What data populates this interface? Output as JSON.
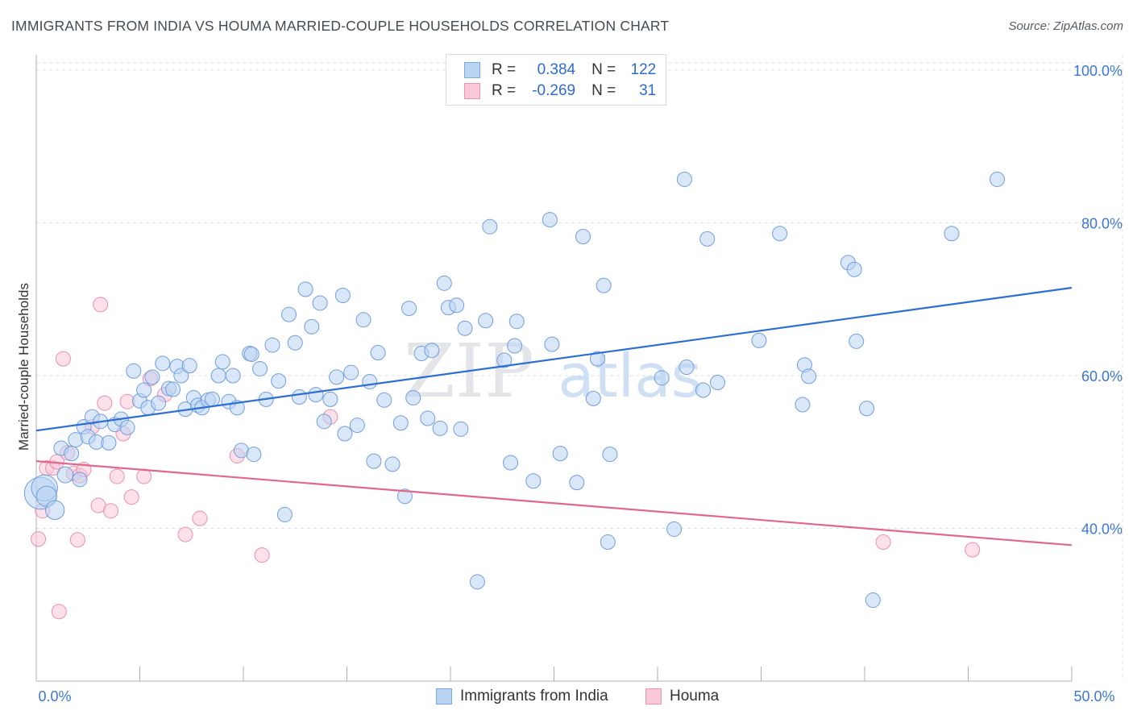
{
  "title": "IMMIGRANTS FROM INDIA VS HOUMA MARRIED-COUPLE HOUSEHOLDS CORRELATION CHART",
  "source": "Source: ZipAtlas.com",
  "watermark": {
    "part1": "ZIP",
    "part2": "atlas"
  },
  "legend": {
    "series1": {
      "r_label": "R =",
      "r_value": "0.384",
      "n_label": "N =",
      "n_value": "122"
    },
    "series2": {
      "r_label": "R =",
      "r_value": "-0.269",
      "n_label": "N =",
      "n_value": "31"
    }
  },
  "bottom_legend": {
    "series1": "Immigrants from India",
    "series2": "Houma"
  },
  "colors": {
    "blue_fill": "#b9d3f3",
    "blue_edge": "#6f9ee0",
    "blue_line": "#2d6fd1",
    "pink_fill": "#f9c9d8",
    "pink_edge": "#ec8fae",
    "pink_line": "#e0688f",
    "tick_text": "#3a78d4"
  },
  "chart_data": {
    "type": "scatter",
    "title": "IMMIGRANTS FROM INDIA VS HOUMA MARRIED-COUPLE HOUSEHOLDS CORRELATION CHART",
    "xlabel": "",
    "ylabel": "Married-couple Households",
    "xlim": [
      0,
      50
    ],
    "ylim": [
      20,
      102
    ],
    "x_tick_labels": [
      "0.0%",
      "50.0%"
    ],
    "y_ticks": [
      40,
      60,
      80,
      100
    ],
    "y_tick_labels": [
      "40.0%",
      "60.0%",
      "80.0%",
      "100.0%"
    ],
    "grid": true,
    "series": [
      {
        "name": "Immigrants from India",
        "r": 0.384,
        "n": 122,
        "trend": {
          "x": [
            0,
            50
          ],
          "y": [
            52.8,
            71.5
          ]
        },
        "points": [
          [
            0.2,
            44.6,
            2.2
          ],
          [
            0.4,
            45.3,
            1.8
          ],
          [
            0.5,
            44.2,
            1.4
          ],
          [
            0.9,
            42.4,
            1.3
          ],
          [
            1.2,
            50.5,
            1.0
          ],
          [
            1.4,
            47.0,
            1.1
          ],
          [
            1.7,
            49.8,
            1.0
          ],
          [
            1.9,
            51.6,
            1.0
          ],
          [
            2.1,
            46.4,
            1.0
          ],
          [
            2.3,
            53.3,
            1.0
          ],
          [
            2.5,
            52.0,
            1.0
          ],
          [
            2.7,
            54.6,
            1.0
          ],
          [
            2.9,
            51.3,
            1.0
          ],
          [
            3.1,
            54.0,
            1.0
          ],
          [
            3.5,
            51.2,
            1.0
          ],
          [
            3.8,
            53.6,
            1.0
          ],
          [
            4.1,
            54.3,
            1.0
          ],
          [
            4.4,
            53.2,
            1.0
          ],
          [
            4.7,
            60.6,
            1.0
          ],
          [
            5.0,
            56.7,
            1.0
          ],
          [
            5.2,
            58.1,
            1.0
          ],
          [
            5.4,
            55.8,
            1.0
          ],
          [
            5.6,
            59.8,
            1.0
          ],
          [
            5.9,
            56.4,
            1.0
          ],
          [
            6.1,
            61.6,
            1.0
          ],
          [
            6.4,
            58.3,
            1.0
          ],
          [
            6.6,
            58.2,
            1.0
          ],
          [
            6.8,
            61.2,
            1.0
          ],
          [
            7.0,
            60.0,
            1.0
          ],
          [
            7.2,
            55.6,
            1.0
          ],
          [
            7.4,
            61.3,
            1.0
          ],
          [
            7.6,
            57.1,
            1.0
          ],
          [
            7.8,
            56.1,
            1.0
          ],
          [
            8.0,
            55.8,
            1.0
          ],
          [
            8.3,
            56.8,
            1.0
          ],
          [
            8.5,
            56.9,
            1.0
          ],
          [
            8.8,
            60.0,
            1.0
          ],
          [
            9.0,
            61.8,
            1.0
          ],
          [
            9.3,
            56.6,
            1.0
          ],
          [
            9.5,
            60.0,
            1.0
          ],
          [
            9.7,
            55.8,
            1.0
          ],
          [
            9.9,
            50.2,
            1.0
          ],
          [
            10.3,
            62.9,
            1.0
          ],
          [
            10.4,
            62.8,
            1.0
          ],
          [
            10.5,
            49.7,
            1.0
          ],
          [
            10.8,
            60.9,
            1.0
          ],
          [
            11.1,
            56.9,
            1.0
          ],
          [
            11.4,
            64.0,
            1.0
          ],
          [
            11.7,
            59.3,
            1.0
          ],
          [
            12.0,
            41.8,
            1.0
          ],
          [
            12.2,
            68.0,
            1.0
          ],
          [
            12.5,
            64.3,
            1.0
          ],
          [
            12.7,
            57.2,
            1.0
          ],
          [
            13.0,
            71.3,
            1.0
          ],
          [
            13.3,
            66.4,
            1.0
          ],
          [
            13.5,
            57.5,
            1.0
          ],
          [
            13.7,
            69.5,
            1.0
          ],
          [
            13.9,
            54.0,
            1.0
          ],
          [
            14.2,
            56.9,
            1.0
          ],
          [
            14.5,
            59.8,
            1.0
          ],
          [
            14.8,
            70.5,
            1.0
          ],
          [
            14.9,
            52.4,
            1.0
          ],
          [
            15.2,
            60.4,
            1.0
          ],
          [
            15.5,
            53.5,
            1.0
          ],
          [
            15.8,
            67.3,
            1.0
          ],
          [
            16.1,
            59.2,
            1.0
          ],
          [
            16.3,
            48.8,
            1.0
          ],
          [
            16.5,
            63.0,
            1.0
          ],
          [
            16.8,
            56.8,
            1.0
          ],
          [
            17.2,
            48.4,
            1.0
          ],
          [
            17.6,
            53.8,
            1.0
          ],
          [
            17.8,
            44.2,
            1.0
          ],
          [
            18.0,
            68.8,
            1.0
          ],
          [
            18.2,
            57.1,
            1.0
          ],
          [
            18.6,
            62.9,
            1.0
          ],
          [
            18.9,
            54.4,
            1.0
          ],
          [
            19.1,
            63.3,
            1.0
          ],
          [
            19.5,
            53.1,
            1.0
          ],
          [
            19.7,
            72.1,
            1.0
          ],
          [
            19.9,
            68.9,
            1.0
          ],
          [
            20.3,
            69.2,
            1.0
          ],
          [
            20.5,
            53.0,
            1.0
          ],
          [
            20.7,
            66.2,
            1.0
          ],
          [
            21.3,
            33.0,
            1.0
          ],
          [
            21.7,
            67.2,
            1.0
          ],
          [
            21.9,
            79.5,
            1.0
          ],
          [
            22.6,
            62.0,
            1.0
          ],
          [
            22.9,
            48.6,
            1.0
          ],
          [
            23.1,
            63.9,
            1.0
          ],
          [
            23.2,
            67.1,
            1.0
          ],
          [
            24.0,
            46.2,
            1.0
          ],
          [
            24.8,
            80.4,
            1.0
          ],
          [
            24.9,
            64.1,
            1.0
          ],
          [
            25.3,
            49.8,
            1.0
          ],
          [
            26.1,
            46.0,
            1.0
          ],
          [
            26.4,
            78.2,
            1.0
          ],
          [
            26.9,
            57.0,
            1.0
          ],
          [
            27.1,
            62.2,
            1.0
          ],
          [
            27.4,
            71.8,
            1.0
          ],
          [
            27.6,
            38.2,
            1.0
          ],
          [
            27.7,
            49.7,
            1.0
          ],
          [
            30.2,
            59.7,
            1.0
          ],
          [
            30.8,
            39.9,
            1.0
          ],
          [
            31.3,
            85.7,
            1.0
          ],
          [
            31.4,
            61.1,
            1.0
          ],
          [
            32.2,
            58.1,
            1.0
          ],
          [
            32.4,
            77.9,
            1.0
          ],
          [
            32.9,
            59.1,
            1.0
          ],
          [
            34.9,
            64.6,
            1.0
          ],
          [
            35.9,
            78.6,
            1.0
          ],
          [
            37.0,
            56.2,
            1.0
          ],
          [
            37.1,
            61.4,
            1.0
          ],
          [
            37.3,
            59.9,
            1.0
          ],
          [
            39.2,
            74.8,
            1.0
          ],
          [
            39.5,
            73.9,
            1.0
          ],
          [
            39.6,
            64.5,
            1.0
          ],
          [
            40.1,
            55.7,
            1.0
          ],
          [
            40.4,
            30.6,
            1.0
          ],
          [
            44.2,
            78.6,
            1.0
          ],
          [
            46.4,
            85.7,
            1.0
          ]
        ]
      },
      {
        "name": "Houma",
        "r": -0.269,
        "n": 31,
        "trend": {
          "x": [
            0,
            50
          ],
          "y": [
            48.8,
            37.8
          ]
        },
        "points": [
          [
            0.1,
            38.6,
            1.0
          ],
          [
            0.3,
            42.3,
            1.0
          ],
          [
            0.5,
            47.9,
            1.0
          ],
          [
            0.8,
            47.9,
            1.0
          ],
          [
            1.0,
            48.7,
            1.0
          ],
          [
            1.1,
            29.1,
            1.0
          ],
          [
            1.3,
            62.2,
            1.0
          ],
          [
            1.5,
            49.9,
            1.0
          ],
          [
            1.8,
            47.2,
            1.0
          ],
          [
            2.0,
            38.5,
            1.0
          ],
          [
            2.1,
            46.9,
            1.0
          ],
          [
            2.3,
            47.7,
            1.0
          ],
          [
            2.7,
            53.3,
            1.0
          ],
          [
            3.0,
            43.0,
            1.0
          ],
          [
            3.1,
            69.3,
            1.0
          ],
          [
            3.3,
            56.4,
            1.0
          ],
          [
            3.6,
            42.3,
            1.0
          ],
          [
            3.9,
            46.8,
            1.0
          ],
          [
            4.2,
            52.4,
            1.0
          ],
          [
            4.4,
            56.6,
            1.0
          ],
          [
            4.6,
            44.1,
            1.0
          ],
          [
            5.2,
            46.8,
            1.0
          ],
          [
            5.5,
            59.6,
            1.0
          ],
          [
            6.2,
            57.5,
            1.0
          ],
          [
            7.2,
            39.2,
            1.0
          ],
          [
            7.9,
            41.3,
            1.0
          ],
          [
            9.7,
            49.5,
            1.0
          ],
          [
            10.9,
            36.5,
            1.0
          ],
          [
            14.2,
            54.6,
            1.0
          ],
          [
            40.9,
            38.2,
            1.0
          ],
          [
            45.2,
            37.2,
            1.0
          ]
        ]
      }
    ]
  }
}
